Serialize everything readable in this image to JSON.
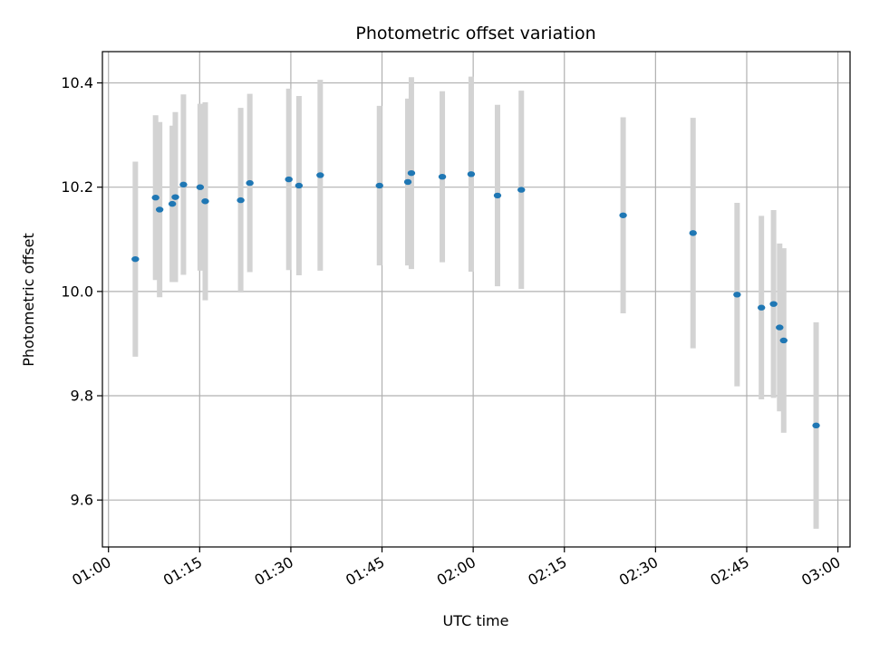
{
  "chart_data": {
    "type": "scatter",
    "title": "Photometric offset variation",
    "xlabel": "UTC time",
    "ylabel": "Photometric offset",
    "grid": true,
    "xlim": [
      "00:59",
      "03:02"
    ],
    "ylim": [
      9.51,
      10.46
    ],
    "x_ticks": [
      "01:00",
      "01:15",
      "01:30",
      "01:45",
      "02:00",
      "02:15",
      "02:30",
      "02:45",
      "03:00"
    ],
    "y_ticks": [
      9.6,
      9.8,
      10.0,
      10.2,
      10.4
    ],
    "y_tick_labels": [
      "9.6",
      "9.8",
      "10.0",
      "10.2",
      "10.4"
    ],
    "marker_color": "#1f77b4",
    "errorbar_color": "#d3d3d3",
    "points": [
      {
        "t": "01:04:25",
        "y": 10.062,
        "err": 0.187
      },
      {
        "t": "01:07:45",
        "y": 10.18,
        "err": 0.158
      },
      {
        "t": "01:08:25",
        "y": 10.157,
        "err": 0.168
      },
      {
        "t": "01:10:30",
        "y": 10.168,
        "err": 0.15
      },
      {
        "t": "01:11:00",
        "y": 10.181,
        "err": 0.163
      },
      {
        "t": "01:12:20",
        "y": 10.205,
        "err": 0.173
      },
      {
        "t": "01:15:05",
        "y": 10.2,
        "err": 0.16
      },
      {
        "t": "01:15:55",
        "y": 10.173,
        "err": 0.19
      },
      {
        "t": "01:21:45",
        "y": 10.175,
        "err": 0.177
      },
      {
        "t": "01:23:15",
        "y": 10.208,
        "err": 0.171
      },
      {
        "t": "01:29:40",
        "y": 10.215,
        "err": 0.174
      },
      {
        "t": "01:31:20",
        "y": 10.203,
        "err": 0.172
      },
      {
        "t": "01:34:50",
        "y": 10.223,
        "err": 0.183
      },
      {
        "t": "01:44:35",
        "y": 10.203,
        "err": 0.153
      },
      {
        "t": "01:49:15",
        "y": 10.21,
        "err": 0.16
      },
      {
        "t": "01:49:50",
        "y": 10.227,
        "err": 0.184
      },
      {
        "t": "01:54:55",
        "y": 10.22,
        "err": 0.164
      },
      {
        "t": "01:59:40",
        "y": 10.225,
        "err": 0.187
      },
      {
        "t": "02:04:00",
        "y": 10.184,
        "err": 0.174
      },
      {
        "t": "02:07:55",
        "y": 10.195,
        "err": 0.19
      },
      {
        "t": "02:24:40",
        "y": 10.146,
        "err": 0.188
      },
      {
        "t": "02:36:10",
        "y": 10.112,
        "err": 0.221
      },
      {
        "t": "02:43:25",
        "y": 9.994,
        "err": 0.176
      },
      {
        "t": "02:47:25",
        "y": 9.969,
        "err": 0.176
      },
      {
        "t": "02:49:25",
        "y": 9.976,
        "err": 0.18
      },
      {
        "t": "02:50:25",
        "y": 9.931,
        "err": 0.161
      },
      {
        "t": "02:51:05",
        "y": 9.906,
        "err": 0.177
      },
      {
        "t": "02:56:25",
        "y": 9.743,
        "err": 0.198
      }
    ]
  }
}
